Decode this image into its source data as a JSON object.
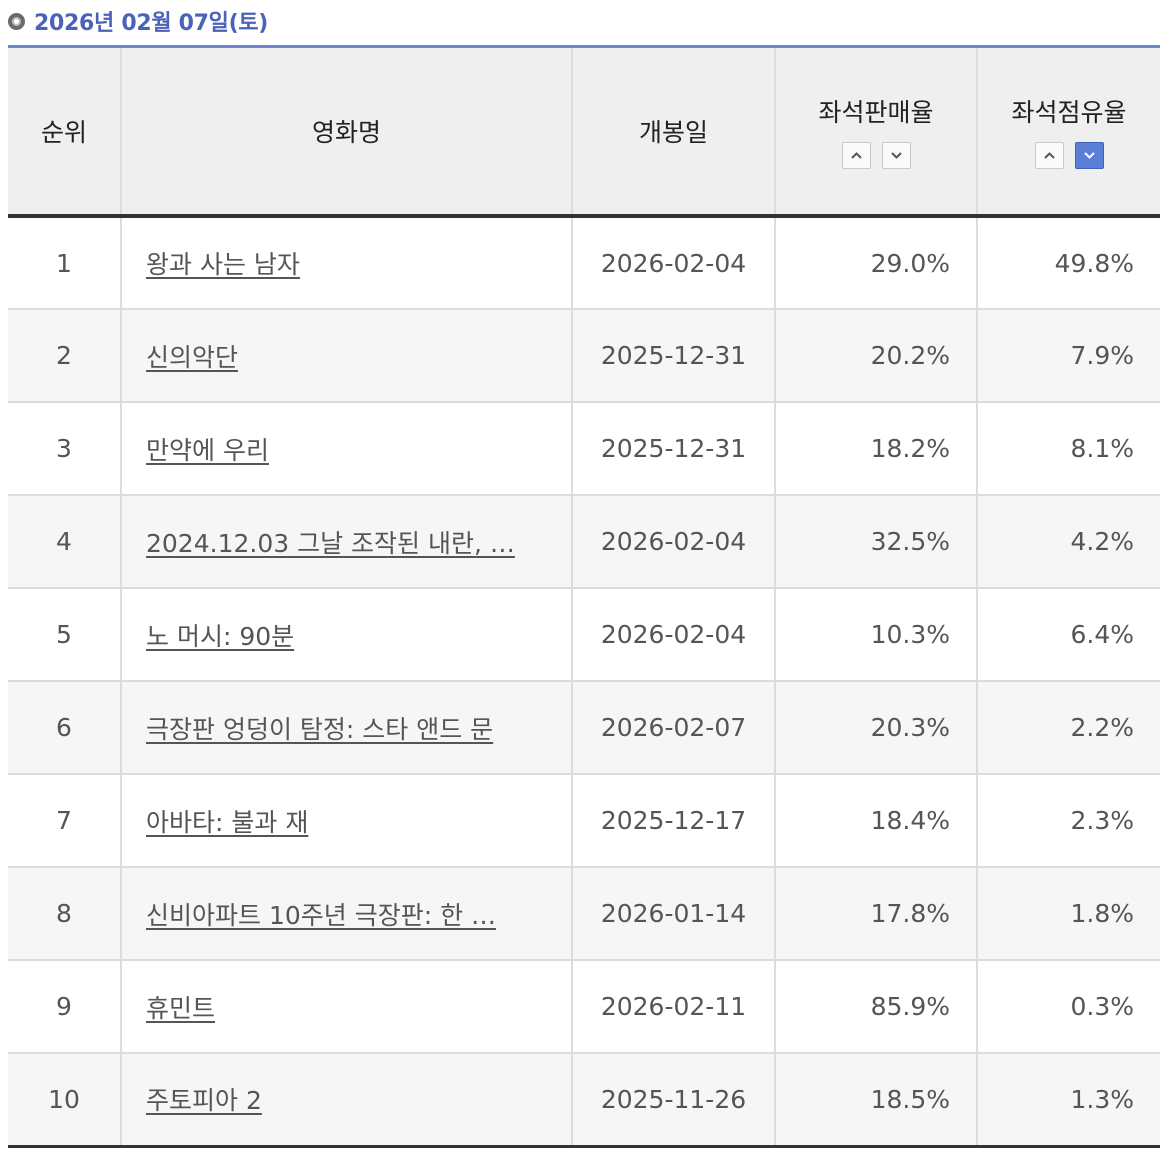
{
  "date_label": "2026년 02월 07일(토)",
  "columns": {
    "rank": "순위",
    "title": "영화명",
    "release": "개봉일",
    "seat_sales": "좌석판매율",
    "seat_share": "좌석점유율"
  },
  "sort": {
    "seat_sales": {
      "asc": "chevron-up",
      "desc": "chevron-down",
      "active": "none"
    },
    "seat_share": {
      "asc": "chevron-up",
      "desc": "chevron-down",
      "active": "desc"
    }
  },
  "colors": {
    "accent": "#4a63b9",
    "active_sort": "#5b7fd6"
  },
  "rows": [
    {
      "rank": "1",
      "title": "왕과 사는 남자",
      "release": "2026-02-04",
      "seat_sales": "29.0%",
      "seat_share": "49.8%"
    },
    {
      "rank": "2",
      "title": "신의악단",
      "release": "2025-12-31",
      "seat_sales": "20.2%",
      "seat_share": "7.9%"
    },
    {
      "rank": "3",
      "title": "만약에 우리",
      "release": "2025-12-31",
      "seat_sales": "18.2%",
      "seat_share": "8.1%"
    },
    {
      "rank": "4",
      "title": "2024.12.03 그날 조작된 내란, …",
      "release": "2026-02-04",
      "seat_sales": "32.5%",
      "seat_share": "4.2%"
    },
    {
      "rank": "5",
      "title": "노 머시: 90분",
      "release": "2026-02-04",
      "seat_sales": "10.3%",
      "seat_share": "6.4%"
    },
    {
      "rank": "6",
      "title": "극장판 엉덩이 탐정: 스타 앤드 문",
      "release": "2026-02-07",
      "seat_sales": "20.3%",
      "seat_share": "2.2%"
    },
    {
      "rank": "7",
      "title": "아바타: 불과 재",
      "release": "2025-12-17",
      "seat_sales": "18.4%",
      "seat_share": "2.3%"
    },
    {
      "rank": "8",
      "title": "신비아파트 10주년 극장판: 한 …",
      "release": "2026-01-14",
      "seat_sales": "17.8%",
      "seat_share": "1.8%"
    },
    {
      "rank": "9",
      "title": "휴민트",
      "release": "2026-02-11",
      "seat_sales": "85.9%",
      "seat_share": "0.3%"
    },
    {
      "rank": "10",
      "title": "주토피아 2",
      "release": "2025-11-26",
      "seat_sales": "18.5%",
      "seat_share": "1.3%"
    }
  ]
}
